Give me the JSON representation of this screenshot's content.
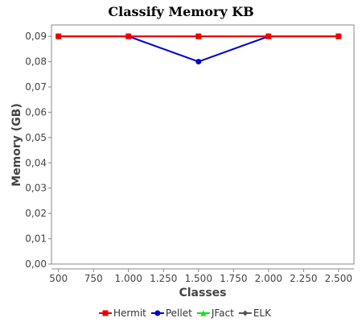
{
  "chart_data": {
    "type": "line",
    "title": "Classify Memory KB",
    "xlabel": "Classes",
    "ylabel": "Memory (GB)",
    "x": [
      500,
      1000,
      1500,
      2000,
      2500
    ],
    "x_ticks": [
      500,
      750,
      1000,
      1250,
      1500,
      1750,
      2000,
      2250,
      2500
    ],
    "x_tick_labels": [
      "500",
      "750",
      "1.000",
      "1.250",
      "1.500",
      "1.750",
      "2.000",
      "2.250",
      "2.500"
    ],
    "xlim": [
      450,
      2610
    ],
    "y_ticks": [
      0,
      0.01,
      0.02,
      0.03,
      0.04,
      0.05,
      0.06,
      0.07,
      0.08,
      0.09
    ],
    "y_tick_labels": [
      "0,00",
      "0,01",
      "0,02",
      "0,03",
      "0,04",
      "0,05",
      "0,06",
      "0,07",
      "0,08",
      "0,09"
    ],
    "ylim": [
      0,
      0.0945
    ],
    "grid": false,
    "legend_position": "bottom",
    "series": [
      {
        "name": "ELK",
        "color": "#555555",
        "marker": "diamond",
        "values": [
          0.09,
          0.09,
          0.09,
          0.09,
          0.09
        ]
      },
      {
        "name": "JFact",
        "color": "#00ee00",
        "marker": "triangle",
        "values": [
          0.09,
          0.09,
          0.09,
          0.09,
          0.09
        ]
      },
      {
        "name": "Pellet",
        "color": "#0000cc",
        "marker": "circle",
        "values": [
          0.09,
          0.09,
          0.08,
          0.09,
          0.09
        ]
      },
      {
        "name": "Hermit",
        "color": "#ee0000",
        "marker": "square",
        "values": [
          0.09,
          0.09,
          0.09,
          0.09,
          0.09
        ]
      }
    ],
    "legend_order": [
      "Hermit",
      "Pellet",
      "JFact",
      "ELK"
    ]
  }
}
